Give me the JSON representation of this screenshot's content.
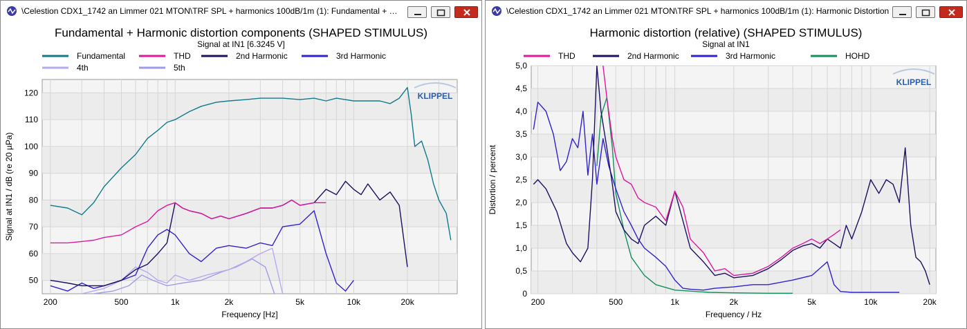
{
  "windows": [
    {
      "title": "\\Celestion CDX1_1742 an Limmer 021 MTON\\TRF SPL + harmonics 100dB/1m (1): Fundamental + Harm...",
      "buttons": [
        "minimize-icon",
        "maximize-icon",
        "close-icon"
      ]
    },
    {
      "title": "\\Celestion CDX1_1742 an Limmer 021 MTON\\TRF SPL + harmonics 100dB/1m (1): Harmonic Distortion",
      "buttons": [
        "minimize-icon",
        "maximize-icon",
        "close-icon"
      ]
    }
  ],
  "colors": {
    "fundamental": "#0f7a8a",
    "thd": "#e0169f",
    "h2": "#1a1060",
    "h3": "#3020d0",
    "h4": "#b8a8f0",
    "h5": "#9c9ce8",
    "hohd": "#10905a",
    "plot_bg": "#f4f4f4",
    "grid": "#d6d6d6"
  },
  "chart_data": [
    {
      "type": "line",
      "title": "Fundamental + Harmonic distortion components (SHAPED STIMULUS)",
      "subtitle": "Signal at IN1 [6.3245 V]",
      "xlabel": "Frequency [Hz]",
      "ylabel": "Signal at IN1 / dB (re 20 µPa)",
      "xscale": "log",
      "xlim": [
        180,
        38000
      ],
      "ylim": [
        45,
        125
      ],
      "xticks": [
        200,
        500,
        1000,
        2000,
        5000,
        10000,
        20000
      ],
      "xtick_labels": [
        "200",
        "500",
        "1k",
        "2k",
        "5k",
        "10k",
        "20k"
      ],
      "yticks": [
        50,
        60,
        70,
        80,
        90,
        100,
        110,
        120
      ],
      "ytick_labels": [
        "50",
        "60",
        "70",
        "80",
        "90",
        "100",
        "110",
        "120"
      ],
      "logo": "KLIPPEL",
      "legend": "top",
      "grid": true,
      "series": [
        {
          "name": "Fundamental",
          "color_key": "fundamental",
          "x": [
            200,
            250,
            300,
            350,
            400,
            500,
            600,
            700,
            800,
            900,
            1000,
            1200,
            1400,
            1700,
            2000,
            2500,
            3000,
            4000,
            5000,
            6000,
            7000,
            8000,
            10000,
            12000,
            14000,
            16000,
            18000,
            20000,
            21000,
            22000,
            24000,
            26000,
            28000,
            30000,
            33000,
            35000
          ],
          "y": [
            78,
            77,
            74.5,
            79,
            85,
            92,
            97,
            103,
            106,
            109,
            110,
            113,
            115,
            116.5,
            117,
            117.5,
            118,
            118,
            117.5,
            118,
            117,
            118,
            117,
            117,
            117,
            116,
            118,
            122,
            112,
            100,
            102,
            95,
            86,
            80,
            75,
            65
          ]
        },
        {
          "name": "THD",
          "color_key": "thd",
          "x": [
            200,
            250,
            300,
            350,
            400,
            500,
            600,
            700,
            800,
            900,
            1000,
            1100,
            1200,
            1400,
            1600,
            1800,
            2000,
            2500,
            3000,
            3500,
            4000,
            4500,
            5000,
            6000,
            7000
          ],
          "y": [
            64,
            64,
            64.5,
            65,
            66,
            67,
            70,
            72,
            76,
            78,
            79,
            77,
            76,
            75,
            73,
            74,
            73,
            75,
            77,
            77,
            78,
            80,
            78,
            79,
            79
          ]
        },
        {
          "name": "2nd Harmonic",
          "color_key": "h2",
          "x": [
            200,
            250,
            300,
            400,
            500,
            600,
            700,
            800,
            900,
            1000,
            1100,
            1200,
            1400,
            1600,
            1800,
            2000,
            2500,
            3000,
            3500,
            4000,
            4500,
            5000,
            6000,
            7000,
            8000,
            9000,
            10000,
            11000,
            12000,
            14000,
            16000,
            18000,
            20000
          ],
          "y": [
            50,
            49,
            48,
            48,
            50,
            54,
            56,
            60,
            64,
            79,
            77,
            76,
            75,
            73,
            74,
            73,
            75,
            77,
            77,
            78,
            80,
            78,
            79,
            84,
            82,
            87,
            84,
            82,
            86,
            80,
            83,
            78,
            55
          ]
        },
        {
          "name": "3rd Harmonic",
          "color_key": "h3",
          "x": [
            200,
            250,
            300,
            350,
            400,
            500,
            600,
            700,
            800,
            900,
            1000,
            1200,
            1400,
            1700,
            2000,
            2500,
            3000,
            3500,
            4000,
            5000,
            6000,
            7000,
            8000,
            9000,
            10000
          ],
          "y": [
            48,
            46,
            49,
            47,
            48,
            50,
            52,
            62,
            67,
            69,
            67,
            60,
            57,
            62,
            63,
            62,
            64,
            63,
            70,
            71,
            76,
            60,
            49,
            46,
            50
          ]
        },
        {
          "name": "4th",
          "color_key": "h4",
          "x": [
            300,
            400,
            500,
            600,
            700,
            800,
            900,
            1000,
            1200,
            1500,
            2000,
            2500,
            3000,
            3500,
            4000
          ],
          "y": [
            45,
            47,
            50,
            55,
            53,
            50,
            49,
            52,
            50,
            52,
            54,
            57,
            60,
            62,
            45
          ]
        },
        {
          "name": "5th",
          "color_key": "h5",
          "x": [
            350,
            450,
            550,
            650,
            750,
            900,
            1100,
            1400,
            1800,
            2200,
            2700,
            3200,
            3600
          ],
          "y": [
            45,
            46,
            48,
            52,
            50,
            48,
            49,
            50,
            53,
            55,
            58,
            55,
            45
          ]
        }
      ]
    },
    {
      "type": "line",
      "title": "Harmonic distortion (relative) (SHAPED STIMULUS)",
      "subtitle": "Signal at IN1",
      "xlabel": "Frequency / Hz",
      "ylabel": "Distortion / percent",
      "xscale": "log",
      "xlim": [
        185,
        21500
      ],
      "ylim": [
        0,
        5
      ],
      "xticks": [
        200,
        500,
        1000,
        2000,
        5000,
        10000,
        20000
      ],
      "xtick_labels": [
        "200",
        "500",
        "1k",
        "2k",
        "5k",
        "10k",
        "20k"
      ],
      "yticks": [
        0,
        0.5,
        1,
        1.5,
        2,
        2.5,
        3,
        3.5,
        4,
        4.5,
        5
      ],
      "ytick_labels": [
        "0",
        "0,5",
        "1,0",
        "1,5",
        "2,0",
        "2,5",
        "3,0",
        "3,5",
        "4,0",
        "4,5",
        "5,0"
      ],
      "logo": "KLIPPEL",
      "legend": "top",
      "grid": true,
      "series": [
        {
          "name": "THD",
          "color_key": "thd",
          "x": [
            430,
            450,
            480,
            500,
            550,
            600,
            650,
            700,
            800,
            900,
            1000,
            1100,
            1200,
            1400,
            1600,
            1800,
            2000,
            2500,
            3000,
            3500,
            4000,
            4500,
            5000,
            5500,
            6000,
            6500,
            7000
          ],
          "y": [
            5,
            4.3,
            3.4,
            3.0,
            2.5,
            2.4,
            2.1,
            2.0,
            1.9,
            1.6,
            2.25,
            1.9,
            1.2,
            0.9,
            0.5,
            0.55,
            0.4,
            0.45,
            0.6,
            0.8,
            1.0,
            1.1,
            1.2,
            1.1,
            1.2,
            1.3,
            1.4
          ]
        },
        {
          "name": "2nd Harmonic",
          "color_key": "h2",
          "x": [
            190,
            200,
            220,
            250,
            280,
            300,
            330,
            360,
            380,
            400,
            420,
            450,
            480,
            500,
            550,
            600,
            650,
            700,
            800,
            900,
            1000,
            1100,
            1200,
            1400,
            1600,
            1800,
            2000,
            2500,
            3000,
            3500,
            4000,
            4500,
            5000,
            5500,
            6000,
            6500,
            7000,
            7500,
            8000,
            9000,
            10000,
            11000,
            12000,
            13000,
            14000,
            15000,
            16000,
            17000,
            18000,
            19000,
            20000
          ],
          "y": [
            2.4,
            2.5,
            2.3,
            1.8,
            1.1,
            0.9,
            0.7,
            1.0,
            2.5,
            5,
            4.0,
            3.2,
            2.4,
            1.8,
            1.4,
            1.2,
            1.1,
            1.5,
            1.7,
            1.5,
            2.25,
            1.6,
            1.0,
            0.7,
            0.4,
            0.45,
            0.35,
            0.4,
            0.55,
            0.75,
            0.95,
            1.05,
            1.1,
            1.0,
            1.2,
            1.1,
            1.0,
            1.5,
            1.2,
            1.8,
            2.5,
            2.2,
            2.5,
            2.4,
            2.0,
            3.2,
            1.5,
            0.8,
            0.7,
            0.5,
            0.2
          ]
        },
        {
          "name": "3rd Harmonic",
          "color_key": "h3",
          "x": [
            190,
            200,
            220,
            240,
            260,
            280,
            300,
            320,
            340,
            360,
            380,
            400,
            430,
            460,
            500,
            550,
            600,
            650,
            700,
            800,
            900,
            1000,
            1100,
            1200,
            1400,
            1600,
            2000,
            2500,
            3000,
            4000,
            5000,
            6000,
            6500,
            7000,
            8000,
            10000,
            14000
          ],
          "y": [
            3.6,
            4.2,
            4.0,
            3.5,
            2.7,
            2.9,
            3.4,
            3.2,
            4.0,
            2.6,
            3.5,
            2.4,
            3.4,
            2.8,
            2.3,
            1.8,
            1.5,
            1.2,
            1.0,
            0.8,
            0.6,
            0.3,
            0.12,
            0.1,
            0.08,
            0.12,
            0.15,
            0.2,
            0.2,
            0.3,
            0.4,
            0.7,
            0.2,
            0.05,
            0.03,
            0.03,
            0.03
          ]
        },
        {
          "name": "HOHD",
          "color_key": "hohd",
          "x": [
            400,
            420,
            450,
            480,
            500,
            550,
            600,
            700,
            800,
            1000,
            1500,
            2000,
            3000,
            4000
          ],
          "y": [
            2.8,
            3.9,
            4.3,
            3.2,
            2.2,
            1.4,
            0.8,
            0.4,
            0.2,
            0.08,
            0.03,
            0.02,
            0.01,
            0.01
          ]
        }
      ]
    }
  ]
}
